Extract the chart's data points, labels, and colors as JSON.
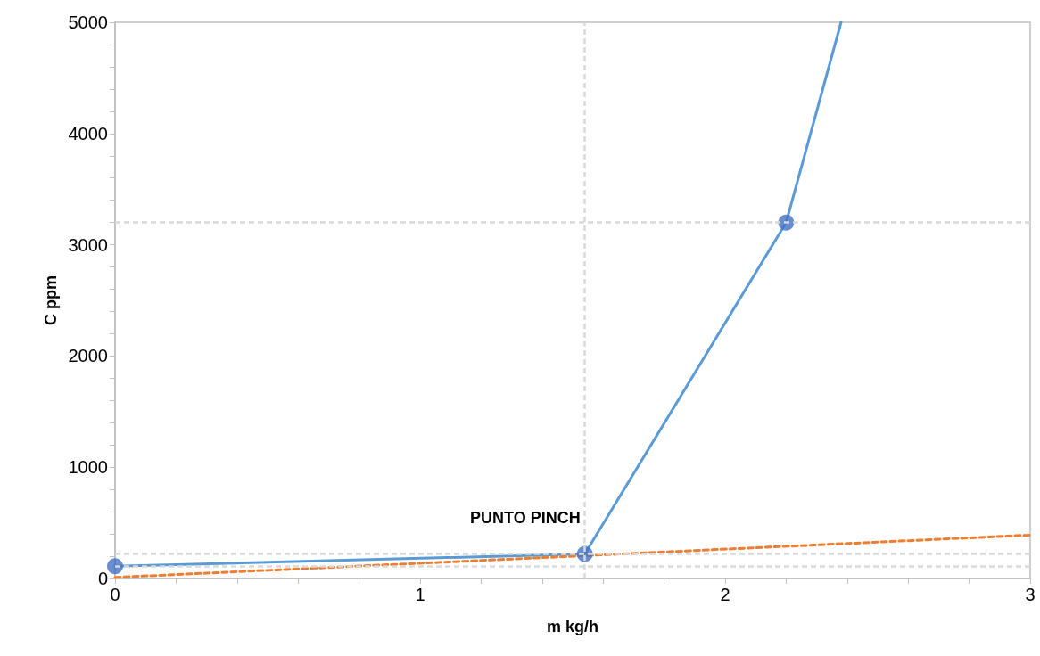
{
  "chart_data": {
    "type": "line",
    "xlabel": "m kg/h",
    "ylabel": "C ppm",
    "xlim": [
      0,
      3
    ],
    "ylim": [
      0,
      5000
    ],
    "xticks": [
      0,
      {
        "value": 0.2,
        "label": null
      },
      {
        "value": 0.4,
        "label": null
      },
      {
        "value": 0.6,
        "label": null
      },
      {
        "value": 0.8,
        "label": null
      },
      1,
      {
        "value": 1.2,
        "label": null
      },
      {
        "value": 1.4,
        "label": null
      },
      {
        "value": 1.6,
        "label": null
      },
      {
        "value": 1.8,
        "label": null
      },
      2,
      {
        "value": 2.2,
        "label": null
      },
      {
        "value": 2.4,
        "label": null
      },
      {
        "value": 2.6,
        "label": null
      },
      {
        "value": 2.8,
        "label": null
      },
      3
    ],
    "yticks": [
      0,
      {
        "value": 200,
        "label": null
      },
      {
        "value": 400,
        "label": null
      },
      {
        "value": 600,
        "label": null
      },
      {
        "value": 800,
        "label": null
      },
      1000,
      {
        "value": 1200,
        "label": null
      },
      {
        "value": 1400,
        "label": null
      },
      {
        "value": 1600,
        "label": null
      },
      {
        "value": 1800,
        "label": null
      },
      2000,
      {
        "value": 2200,
        "label": null
      },
      {
        "value": 2400,
        "label": null
      },
      {
        "value": 2600,
        "label": null
      },
      {
        "value": 2800,
        "label": null
      },
      3000,
      {
        "value": 3200,
        "label": null
      },
      {
        "value": 3400,
        "label": null
      },
      {
        "value": 3600,
        "label": null
      },
      {
        "value": 3800,
        "label": null
      },
      4000,
      {
        "value": 4200,
        "label": null
      },
      {
        "value": 4400,
        "label": null
      },
      {
        "value": 4600,
        "label": null
      },
      {
        "value": 4800,
        "label": null
      },
      5000
    ],
    "grid": false,
    "series": [
      {
        "color": "#5b9bd5",
        "marker": "none",
        "line_style": "solid",
        "x": [
          0,
          1.54,
          2.2,
          2.38
        ],
        "values": [
          110,
          220,
          3200,
          5000
        ]
      },
      {
        "type": "scatter",
        "color": "#4472c4",
        "marker": "circle",
        "x": [
          0,
          1.54,
          2.2
        ],
        "values": [
          110,
          220,
          3200
        ]
      },
      {
        "color": "#ed7d31",
        "marker": "none",
        "line_style": "dashed",
        "x": [
          0,
          3
        ],
        "values": [
          10,
          390
        ]
      }
    ],
    "ref_lines": [
      {
        "axis": "x",
        "value": 1.54,
        "color": "#d9d9d9",
        "line_style": "dashed"
      },
      {
        "axis": "y",
        "value": 3200,
        "color": "#d9d9d9",
        "line_style": "dashed"
      },
      {
        "axis": "y",
        "value": 220,
        "color": "#d9d9d9",
        "line_style": "dashed"
      },
      {
        "axis": "y",
        "value": 110,
        "color": "#d9d9d9",
        "line_style": "dashed"
      }
    ],
    "annotations": [
      {
        "text": "PUNTO PINCH",
        "x": 1.54,
        "y": 220
      }
    ]
  }
}
